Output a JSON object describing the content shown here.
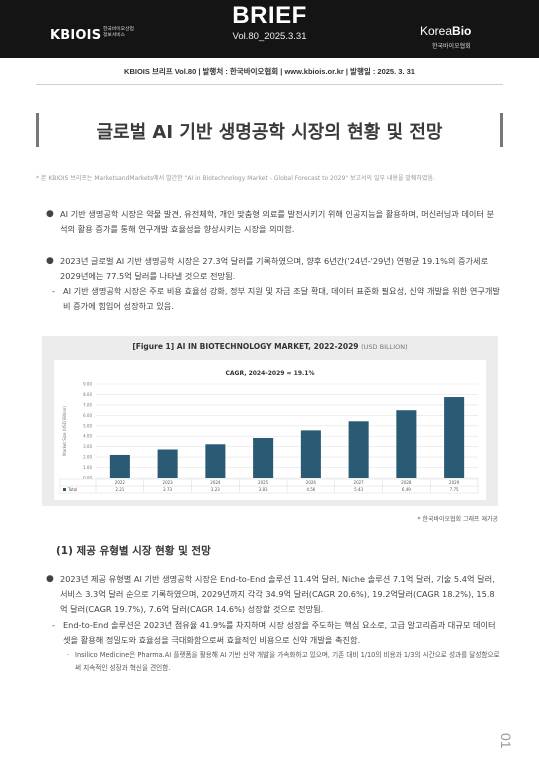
{
  "header": {
    "logo_left": "KBIOIS",
    "logo_left_sub": [
      "한국바이오산업",
      "정보서비스"
    ],
    "title": "BRIEF",
    "volume": "Vol.80_2025.3.31",
    "logo_right_a": "Korea",
    "logo_right_b": "Bio",
    "logo_right_sub": "한국바이오협회"
  },
  "publication_line": "KBIOIS 브리프 Vol.80 | 발행처 : 한국바이오협회 | www.kbiois.or.kr | 발행일 : 2025. 3. 31",
  "title": "글로벌 AI 기반 생명공학 시장의 현황 및 전망",
  "note": "* 본 KBIOIS 브리프는 MarketsandMarkets에서 발간한 \"AI in Biotechnology Market - Global Forecast to 2029\" 보고서의 일부 내용을 발췌하였음.",
  "bullets": {
    "b1": "AI 기반 생명공학 시장은 약물 발견, 유전체학, 개인 맞춤형 의료를 발전시키기 위해 인공지능을 활용하며, 머신러닝과 데이터 분석의 활용 증가를 통해 연구개발 효율성을 향상시키는 시장을 의미함.",
    "b2": "2023년 글로벌 AI 기반 생명공학 시장은 27.3억 달러를 기록하였으며, 향후 6년간('24년-'29년) 연평균 19.1%의 증가세로 2029년에는 77.5억 달러를 나타낼 것으로 전망됨.",
    "b2_sub": "AI 기반 생명공학 시장은 주로 비용 효율성 강화, 정부 지원 및 자금 조달 확대, 데이터 표준화 필요성, 신약 개발을 위한 연구개발비 증가에 힘입어 성장하고 있음.",
    "b3": "2023년 제공 유형별 AI 기반 생명공학 시장은 End-to-End 솔루션 11.4억 달러, Niche 솔루션 7.1억 달러, 기술 5.4억 달러, 서비스 3.3억 달러 순으로 기록하였으며, 2029년까지 각각 34.9억 달러(CAGR 20.6%), 19.2억달러(CAGR 18.2%), 15.8억 달러(CAGR 19.7%), 7.6억 달러(CAGR 14.6%) 성장할 것으로 전망됨.",
    "b3_sub": "End-to-End 솔루션은 2023년 점유율 41.9%를 차지하며 시장 성장을 주도하는 핵심 요소로, 고급 알고리즘과 대규모 데이터셋을 활용해 정밀도와 효율성을 극대화함으로써 효율적인 비용으로 신약 개발을 촉진함.",
    "b3_subsub": "Insilico Medicine은 Pharma.AI 플랫폼을 활용해 AI 기반 신약 개발을 가속화하고 있으며, 기존 대비 1/10의 비용과 1/3의 시간으로 성과를 달성함으로써 지속적인 성장과 혁신을 견인함."
  },
  "figure": {
    "title": "[Figure 1] AI IN BIOTECHNOLOGY MARKET, 2022-2029",
    "unit": "(USD BILLION)",
    "cagr": "CAGR, 2024-2029 = 19.1%",
    "source": "* 한국바이오협회 그래프 재가공"
  },
  "section_heading": "(1) 제공 유형별 시장 현황 및 전망",
  "page_number": "01",
  "chart_data": {
    "type": "bar",
    "title": "[Figure 1] AI IN BIOTECHNOLOGY MARKET, 2022-2029",
    "subtitle": "CAGR, 2024-2029 = 19.1%",
    "ylabel": "Market Size (USD Billion)",
    "xlabel": "",
    "categories": [
      "2022",
      "2023",
      "2024",
      "2025",
      "2026",
      "2027",
      "2028",
      "2029"
    ],
    "series": [
      {
        "name": "Total",
        "values": [
          2.21,
          2.73,
          3.23,
          3.83,
          4.56,
          5.43,
          6.49,
          7.75
        ]
      }
    ],
    "value_labels": [
      "2.21",
      "2.73",
      "3.23",
      "3.83",
      "4.56",
      "5.43",
      "6.49",
      "7.75"
    ],
    "ylim": [
      0,
      9
    ],
    "yticks": [
      "0.00",
      "1.00",
      "2.00",
      "3.00",
      "4.00",
      "5.00",
      "6.00",
      "7.00",
      "8.00",
      "9.00"
    ],
    "grid": true,
    "bar_color": "#2b5a75"
  }
}
